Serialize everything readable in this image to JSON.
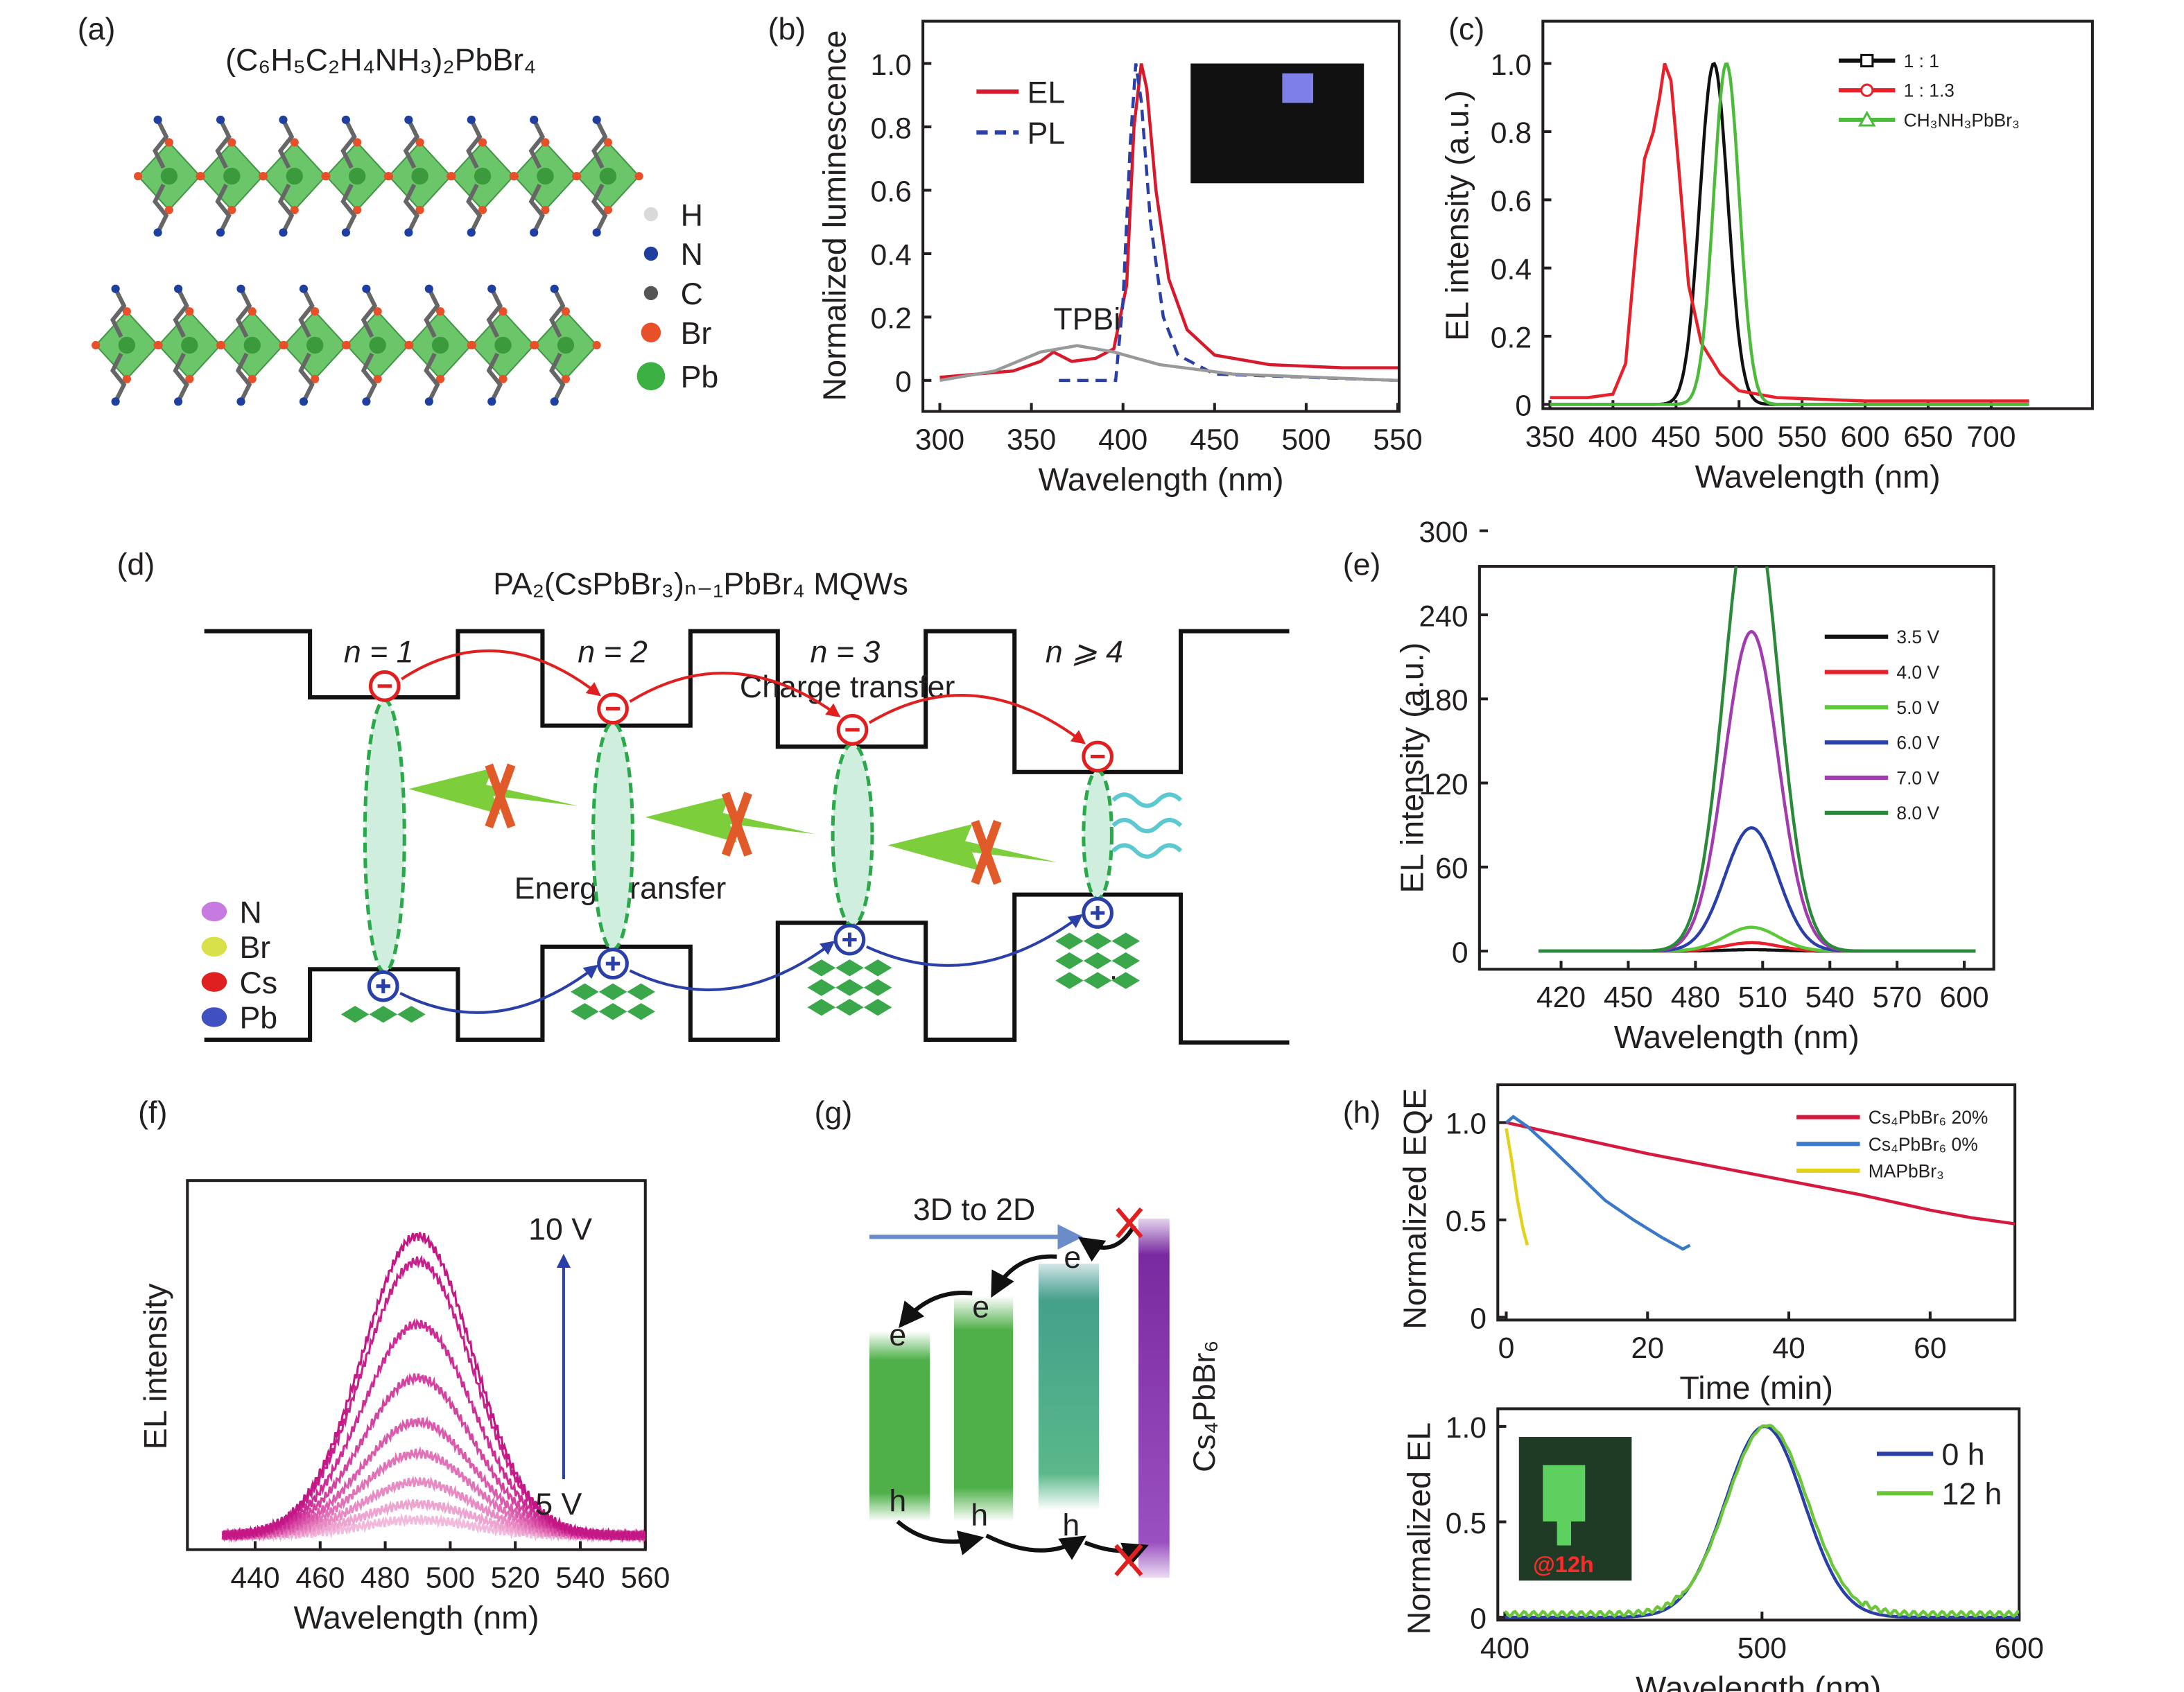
{
  "panel_labels": [
    "(a)",
    "(b)",
    "(c)",
    "(d)",
    "(e)",
    "(f)",
    "(g)",
    "(h)"
  ],
  "panel_a": {
    "title": "(C₆H₅C₂H₄NH₃)₂PbBr₄",
    "legend": [
      {
        "label": "H",
        "color": "#d9d9d9"
      },
      {
        "label": "N",
        "color": "#1f3fa0"
      },
      {
        "label": "C",
        "color": "#555555"
      },
      {
        "label": "Br",
        "color": "#e8502a"
      },
      {
        "label": "Pb",
        "color": "#3cb043"
      }
    ]
  },
  "panel_d": {
    "title": "PA₂(CsPbBr₃)ₙ₋₁PbBr₄ MQWs",
    "wells": [
      "n = 1",
      "n = 2",
      "n = 3",
      "n ⩾ 4"
    ],
    "charge_transfer": "Charge transfer",
    "energy_transfer": "Energy transfer",
    "dots": "···",
    "legend": [
      {
        "label": "N",
        "color": "#c77be0"
      },
      {
        "label": "Br",
        "color": "#d8e04a"
      },
      {
        "label": "Cs",
        "color": "#e02020"
      },
      {
        "label": "Pb",
        "color": "#4050c0"
      }
    ]
  },
  "panel_g": {
    "arrow_label": "3D to 2D",
    "electron": "e",
    "hole": "h",
    "material": "Cs₄PbBr₆"
  },
  "insets": {
    "h_label": "@12h"
  },
  "chart_data": [
    {
      "id": "b",
      "type": "line",
      "xlabel": "Wavelength (nm)",
      "ylabel": "Normalized luminescence",
      "xlim": [
        300,
        550
      ],
      "ylim": [
        0,
        1
      ],
      "xticks": [
        300,
        350,
        400,
        450,
        500,
        550
      ],
      "yticks": [
        0,
        0.2,
        0.4,
        0.6,
        0.8,
        1.0
      ],
      "ytick_labels": [
        "0",
        "0.2",
        "0.4",
        "0.6",
        "0.8",
        "1.0"
      ],
      "annotation": "TPBi",
      "series": [
        {
          "name": "EL",
          "color": "#d7192b",
          "dash": false,
          "points": [
            [
              300,
              0.01
            ],
            [
              320,
              0.02
            ],
            [
              340,
              0.03
            ],
            [
              355,
              0.06
            ],
            [
              362,
              0.09
            ],
            [
              372,
              0.06
            ],
            [
              385,
              0.07
            ],
            [
              395,
              0.1
            ],
            [
              402,
              0.3
            ],
            [
              406,
              0.8
            ],
            [
              410,
              1.0
            ],
            [
              413,
              0.92
            ],
            [
              418,
              0.6
            ],
            [
              425,
              0.32
            ],
            [
              435,
              0.16
            ],
            [
              450,
              0.08
            ],
            [
              480,
              0.05
            ],
            [
              520,
              0.04
            ],
            [
              550,
              0.04
            ]
          ]
        },
        {
          "name": "PL",
          "color": "#2b3fa8",
          "dash": true,
          "points": [
            [
              365,
              0
            ],
            [
              396,
              0
            ],
            [
              400,
              0.25
            ],
            [
              404,
              0.75
            ],
            [
              407,
              1.0
            ],
            [
              410,
              0.88
            ],
            [
              415,
              0.5
            ],
            [
              422,
              0.2
            ],
            [
              430,
              0.08
            ],
            [
              450,
              0.02
            ],
            [
              550,
              0.0
            ]
          ]
        },
        {
          "name": "TPBi",
          "color": "#999999",
          "dash": false,
          "legend": false,
          "points": [
            [
              300,
              0.0
            ],
            [
              330,
              0.03
            ],
            [
              355,
              0.09
            ],
            [
              375,
              0.11
            ],
            [
              395,
              0.09
            ],
            [
              420,
              0.05
            ],
            [
              460,
              0.02
            ],
            [
              550,
              0.0
            ]
          ]
        }
      ]
    },
    {
      "id": "c",
      "type": "line",
      "xlabel": "Wavelength (nm)",
      "ylabel": "EL intensity (a.u.)",
      "xlim": [
        350,
        730
      ],
      "ylim": [
        0,
        1
      ],
      "xticks": [
        350,
        400,
        450,
        500,
        550,
        600,
        650,
        700
      ],
      "yticks": [
        0,
        0.2,
        0.4,
        0.6,
        0.8,
        1.0
      ],
      "ytick_labels": [
        "0",
        "0.2",
        "0.4",
        "0.6",
        "0.8",
        "1.0"
      ],
      "series": [
        {
          "name": "1 : 1",
          "color": "#111111",
          "marker": "square",
          "gauss": {
            "peak": 480,
            "fwhm": 26,
            "amp": 1.0
          }
        },
        {
          "name": "1 : 1.3",
          "color": "#e8202a",
          "marker": "circle",
          "points": [
            [
              350,
              0.02
            ],
            [
              380,
              0.02
            ],
            [
              400,
              0.03
            ],
            [
              410,
              0.12
            ],
            [
              418,
              0.45
            ],
            [
              425,
              0.72
            ],
            [
              432,
              0.8
            ],
            [
              437,
              0.9
            ],
            [
              441,
              1.0
            ],
            [
              446,
              0.95
            ],
            [
              452,
              0.7
            ],
            [
              460,
              0.35
            ],
            [
              470,
              0.18
            ],
            [
              485,
              0.09
            ],
            [
              500,
              0.04
            ],
            [
              530,
              0.02
            ],
            [
              600,
              0.01
            ],
            [
              730,
              0.01
            ]
          ]
        },
        {
          "name": "CH₃NH₃PbBr₃",
          "color": "#4cbb3a",
          "marker": "triangle",
          "gauss": {
            "peak": 490,
            "fwhm": 24,
            "amp": 1.0
          }
        }
      ]
    },
    {
      "id": "e",
      "type": "line",
      "xlabel": "Wavelength (nm)",
      "ylabel": "EL intensity (a.u.)",
      "xlim": [
        410,
        605
      ],
      "ylim": [
        -20,
        350
      ],
      "xticks": [
        420,
        450,
        480,
        510,
        540,
        570,
        600
      ],
      "yticks": [
        0,
        60,
        120,
        180,
        240,
        300
      ],
      "ytick_labels": [
        "0",
        "60",
        "120",
        "180",
        "240",
        "300"
      ],
      "series": [
        {
          "name": "3.5 V",
          "color": "#111111",
          "gauss": {
            "peak": 505,
            "fwhm": 28,
            "amp": 1
          }
        },
        {
          "name": "4.0 V",
          "color": "#e8202a",
          "gauss": {
            "peak": 505,
            "fwhm": 28,
            "amp": 6
          }
        },
        {
          "name": "5.0 V",
          "color": "#5cc93a",
          "gauss": {
            "peak": 505,
            "fwhm": 28,
            "amp": 17
          }
        },
        {
          "name": "6.0 V",
          "color": "#2b3fa8",
          "gauss": {
            "peak": 505,
            "fwhm": 28,
            "amp": 88
          }
        },
        {
          "name": "7.0 V",
          "color": "#a23ab0",
          "gauss": {
            "peak": 505,
            "fwhm": 28,
            "amp": 228
          }
        },
        {
          "name": "8.0 V",
          "color": "#2a8a3a",
          "gauss": {
            "peak": 505,
            "fwhm": 28,
            "amp": 325
          }
        }
      ]
    },
    {
      "id": "f",
      "type": "line",
      "xlabel": "Wavelength (nm)",
      "ylabel": "EL intensity",
      "xlim": [
        430,
        560
      ],
      "ylim": [
        0,
        1.05
      ],
      "xticks": [
        440,
        460,
        480,
        500,
        520,
        540,
        560
      ],
      "annotation_top": "10 V",
      "annotation_bottom": "5 V",
      "series": [
        {
          "name": "5 V",
          "color": "#f3b9dc",
          "gauss": {
            "peak": 490,
            "fwhm": 40,
            "amp": 0.05
          }
        },
        {
          "name": "",
          "color": "#eea4d0",
          "gauss": {
            "peak": 490,
            "fwhm": 40,
            "amp": 0.1
          }
        },
        {
          "name": "",
          "color": "#e88bc4",
          "gauss": {
            "peak": 490,
            "fwhm": 40,
            "amp": 0.17
          }
        },
        {
          "name": "",
          "color": "#e272b8",
          "gauss": {
            "peak": 490,
            "fwhm": 40,
            "amp": 0.26
          }
        },
        {
          "name": "",
          "color": "#db5aac",
          "gauss": {
            "peak": 490,
            "fwhm": 40,
            "amp": 0.36
          }
        },
        {
          "name": "",
          "color": "#d443a0",
          "gauss": {
            "peak": 490,
            "fwhm": 40,
            "amp": 0.5
          }
        },
        {
          "name": "",
          "color": "#cd2d95",
          "gauss": {
            "peak": 490,
            "fwhm": 40,
            "amp": 0.67
          }
        },
        {
          "name": "",
          "color": "#c8208c",
          "gauss": {
            "peak": 490,
            "fwhm": 40,
            "amp": 0.87
          }
        },
        {
          "name": "10 V",
          "color": "#c21785",
          "gauss": {
            "peak": 490,
            "fwhm": 40,
            "amp": 0.95
          }
        }
      ]
    },
    {
      "id": "h1",
      "type": "line",
      "xlabel": "Time (min)",
      "ylabel": "Normalized EQE",
      "xlim": [
        0,
        72
      ],
      "ylim": [
        0,
        1.1
      ],
      "xticks": [
        0,
        20,
        40,
        60
      ],
      "yticks": [
        0,
        0.5,
        1.0
      ],
      "ytick_labels": [
        "0",
        "0.5",
        "1.0"
      ],
      "series": [
        {
          "name": "Cs₄PbBr₆ 20%",
          "color": "#d7193f",
          "points": [
            [
              0,
              1.0
            ],
            [
              10,
              0.92
            ],
            [
              20,
              0.84
            ],
            [
              30,
              0.77
            ],
            [
              40,
              0.7
            ],
            [
              50,
              0.63
            ],
            [
              60,
              0.55
            ],
            [
              66,
              0.51
            ],
            [
              70,
              0.49
            ],
            [
              72,
              0.48
            ]
          ]
        },
        {
          "name": "Cs₄PbBr₆ 0%",
          "color": "#3a78c8",
          "points": [
            [
              0,
              1.0
            ],
            [
              1,
              1.03
            ],
            [
              3,
              0.98
            ],
            [
              6,
              0.88
            ],
            [
              10,
              0.74
            ],
            [
              14,
              0.6
            ],
            [
              18,
              0.5
            ],
            [
              22,
              0.41
            ],
            [
              25,
              0.35
            ],
            [
              26,
              0.37
            ]
          ]
        },
        {
          "name": "MAPbBr₃",
          "color": "#e2d21a",
          "points": [
            [
              0,
              0.97
            ],
            [
              0.8,
              0.8
            ],
            [
              1.6,
              0.6
            ],
            [
              2.4,
              0.45
            ],
            [
              3,
              0.37
            ]
          ]
        }
      ]
    },
    {
      "id": "h2",
      "type": "line",
      "xlabel": "Wavelength (nm)",
      "ylabel": "Normalized EL",
      "xlim": [
        400,
        600
      ],
      "ylim": [
        0,
        1.1
      ],
      "xticks": [
        400,
        500,
        600
      ],
      "yticks": [
        0,
        0.5,
        1.0
      ],
      "ytick_labels": [
        "0",
        "0.5",
        "1.0"
      ],
      "series": [
        {
          "name": "0 h",
          "color": "#2b3fa8",
          "gauss": {
            "peak": 501,
            "fwhm": 36,
            "amp": 1.0
          }
        },
        {
          "name": "12 h",
          "color": "#6cc63a",
          "gauss": {
            "peak": 502,
            "fwhm": 37,
            "amp": 1.0,
            "base": 0.03
          }
        }
      ]
    }
  ]
}
